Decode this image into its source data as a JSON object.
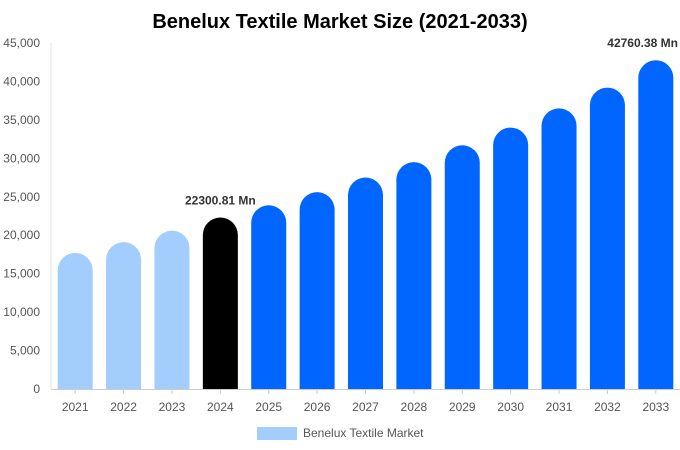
{
  "chart_data": {
    "type": "bar",
    "title": "Benelux Textile Market Size (2021-2033)",
    "xlabel": "",
    "ylabel": "",
    "categories": [
      "2021",
      "2022",
      "2023",
      "2024",
      "2025",
      "2026",
      "2027",
      "2028",
      "2029",
      "2030",
      "2031",
      "2032",
      "2033"
    ],
    "series": [
      {
        "name": "Benelux Textile Market",
        "values": [
          17700,
          19100,
          20600,
          22300.81,
          23900,
          25600,
          27500,
          29500,
          31700,
          34000,
          36500,
          39200,
          42760.38
        ]
      }
    ],
    "ylim": [
      0,
      45000
    ],
    "yticks": [
      0,
      5000,
      10000,
      15000,
      20000,
      25000,
      30000,
      35000,
      40000,
      45000
    ],
    "ytick_labels": [
      "0",
      "5,000",
      "10,000",
      "15,000",
      "20,000",
      "25,000",
      "30,000",
      "35,000",
      "40,000",
      "45,000"
    ],
    "data_labels": [
      {
        "category": "2024",
        "text": "22300.81 Mn"
      },
      {
        "category": "2033",
        "text": "42760.38 Mn"
      }
    ],
    "bar_colors": [
      "#a3cdfd",
      "#a3cdfd",
      "#a3cdfd",
      "#000000",
      "#0066ff",
      "#0066ff",
      "#0066ff",
      "#0066ff",
      "#0066ff",
      "#0066ff",
      "#0066ff",
      "#0066ff",
      "#0066ff"
    ],
    "legend": {
      "position": "bottom",
      "swatch_color": "#a3cdfd"
    },
    "grid": false
  }
}
